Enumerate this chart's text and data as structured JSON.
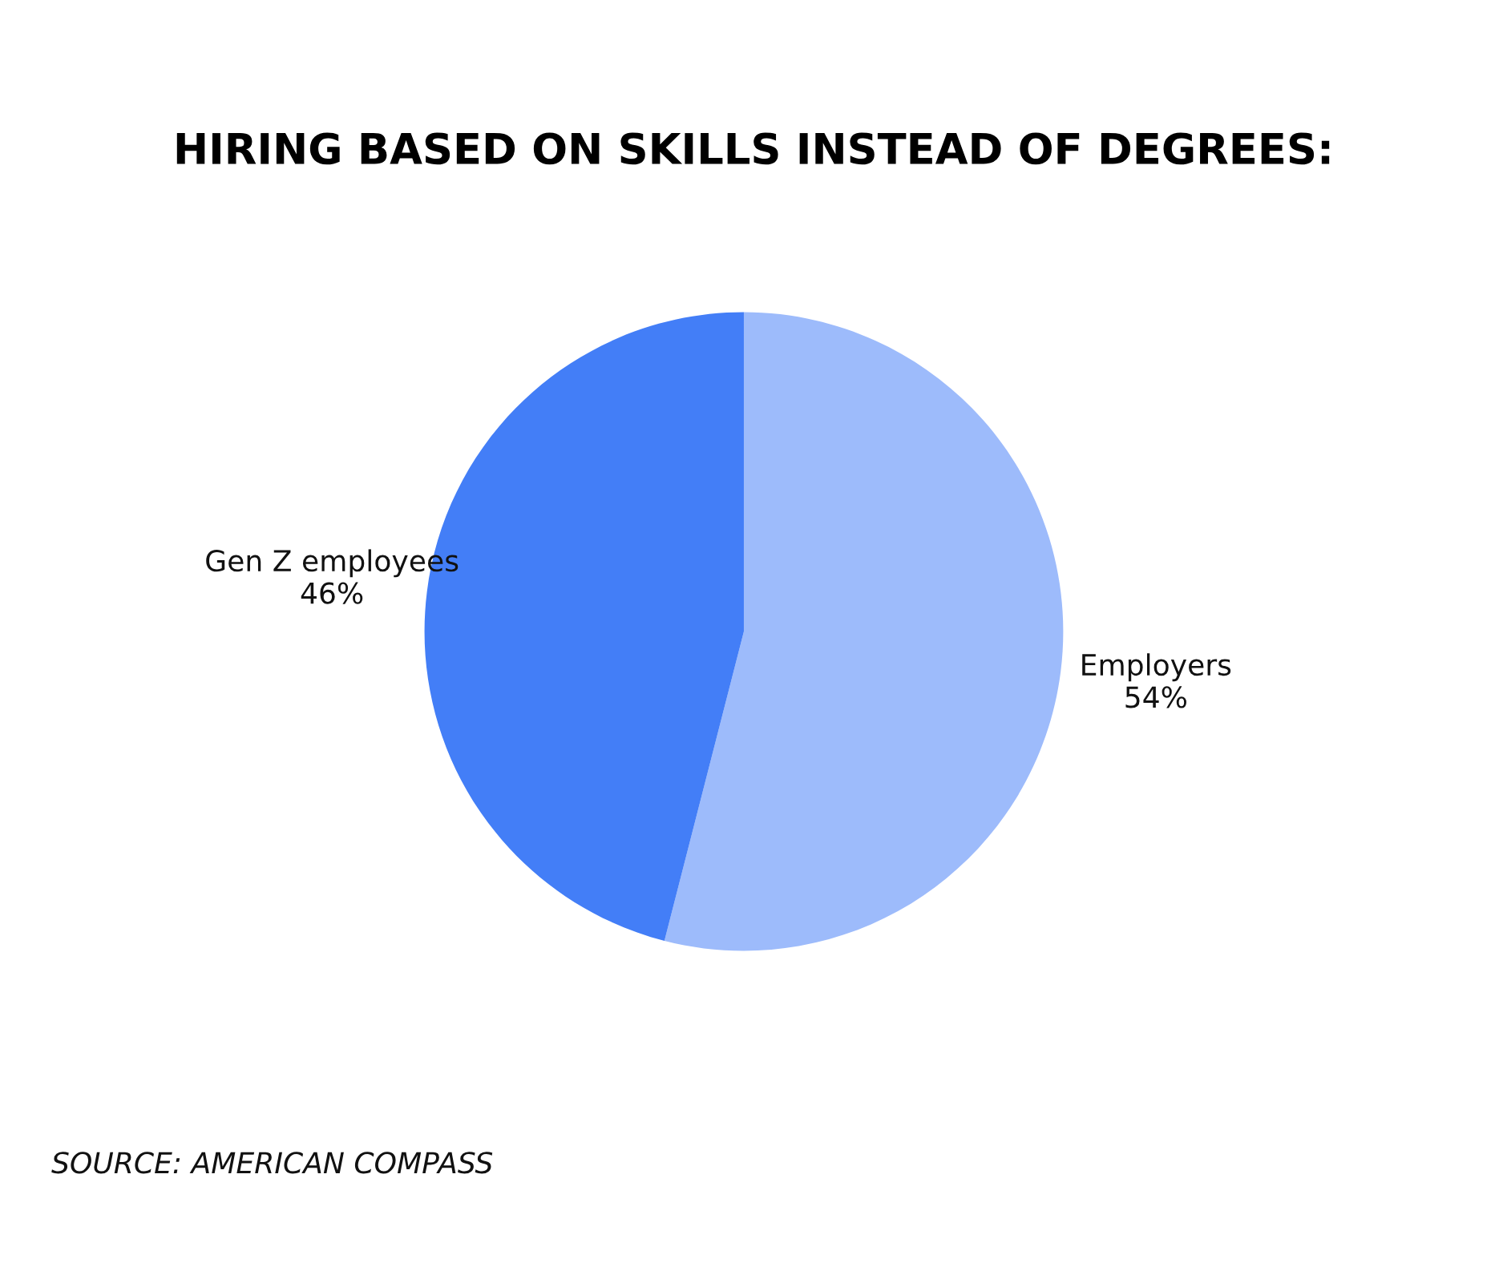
{
  "chart_data": {
    "type": "pie",
    "title": "HIRING BASED ON SKILLS INSTEAD OF DEGREES:",
    "categories": [
      "Employers",
      "Gen Z employees"
    ],
    "values": [
      54,
      46
    ],
    "value_labels": [
      "54%",
      "46%"
    ],
    "colors": [
      "#9dbbfb",
      "#437ef7"
    ],
    "legend": false,
    "annotations": [
      "SOURCE: AMERICAN COMPASS"
    ]
  }
}
